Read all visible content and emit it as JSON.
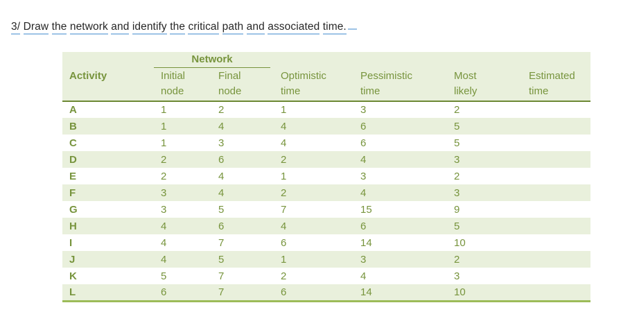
{
  "title": {
    "text": "3/ Draw the network and identify the critical path and associated time."
  },
  "colors": {
    "table_text_olive": "#77943d",
    "row_stripe": "#e9f0dc",
    "header_rule": "#6d8834",
    "bottom_rule": "#9cbb59",
    "network_rule": "#77933c",
    "title_text": "#262626",
    "title_underline_blue": "#9dc3e6"
  },
  "table": {
    "group_header": "Network",
    "headers": [
      "Activity",
      "Initial\nnode",
      "Final\nnode",
      "Optimistic\ntime",
      "Pessimistic\ntime",
      "Most\nlikely",
      "Estimated\ntime"
    ],
    "rows": [
      {
        "activity": "A",
        "initial": "1",
        "final": "2",
        "optimistic": "1",
        "pessimistic": "3",
        "most_likely": "2",
        "estimated": ""
      },
      {
        "activity": "B",
        "initial": "1",
        "final": "4",
        "optimistic": "4",
        "pessimistic": "6",
        "most_likely": "5",
        "estimated": ""
      },
      {
        "activity": "C",
        "initial": "1",
        "final": "3",
        "optimistic": "4",
        "pessimistic": "6",
        "most_likely": "5",
        "estimated": ""
      },
      {
        "activity": "D",
        "initial": "2",
        "final": "6",
        "optimistic": "2",
        "pessimistic": "4",
        "most_likely": "3",
        "estimated": ""
      },
      {
        "activity": "E",
        "initial": "2",
        "final": "4",
        "optimistic": "1",
        "pessimistic": "3",
        "most_likely": "2",
        "estimated": ""
      },
      {
        "activity": "F",
        "initial": "3",
        "final": "4",
        "optimistic": "2",
        "pessimistic": "4",
        "most_likely": "3",
        "estimated": ""
      },
      {
        "activity": "G",
        "initial": "3",
        "final": "5",
        "optimistic": "7",
        "pessimistic": "15",
        "most_likely": "9",
        "estimated": ""
      },
      {
        "activity": "H",
        "initial": "4",
        "final": "6",
        "optimistic": "4",
        "pessimistic": "6",
        "most_likely": "5",
        "estimated": ""
      },
      {
        "activity": "I",
        "initial": "4",
        "final": "7",
        "optimistic": "6",
        "pessimistic": "14",
        "most_likely": "10",
        "estimated": ""
      },
      {
        "activity": "J",
        "initial": "4",
        "final": "5",
        "optimistic": "1",
        "pessimistic": "3",
        "most_likely": "2",
        "estimated": ""
      },
      {
        "activity": "K",
        "initial": "5",
        "final": "7",
        "optimistic": "2",
        "pessimistic": "4",
        "most_likely": "3",
        "estimated": ""
      },
      {
        "activity": "L",
        "initial": "6",
        "final": "7",
        "optimistic": "6",
        "pessimistic": "14",
        "most_likely": "10",
        "estimated": ""
      }
    ]
  }
}
